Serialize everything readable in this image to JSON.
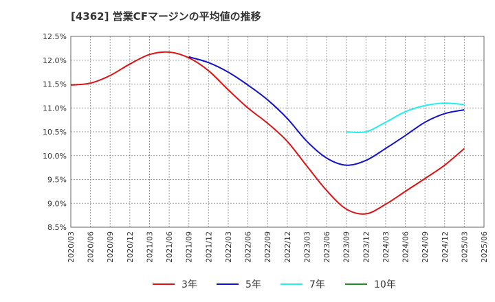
{
  "chart_data": {
    "type": "line",
    "title": "[4362]  営業CFマージンの平均値の推移",
    "xlabel": "",
    "ylabel": "",
    "ylim": [
      8.5,
      12.5
    ],
    "y_ticks": [
      "8.5%",
      "9.0%",
      "9.5%",
      "10.0%",
      "10.5%",
      "11.0%",
      "11.5%",
      "12.0%",
      "12.5%"
    ],
    "y_tick_values": [
      8.5,
      9.0,
      9.5,
      10.0,
      10.5,
      11.0,
      11.5,
      12.0,
      12.5
    ],
    "x_ticks": [
      "2020/03",
      "2020/06",
      "2020/09",
      "2020/12",
      "2021/03",
      "2021/06",
      "2021/09",
      "2021/12",
      "2022/03",
      "2022/06",
      "2022/09",
      "2022/12",
      "2023/03",
      "2023/06",
      "2023/09",
      "2023/12",
      "2024/03",
      "2024/06",
      "2024/09",
      "2024/12",
      "2025/03",
      "2025/06"
    ],
    "grid": true,
    "legend_position": "bottom",
    "series": [
      {
        "name": "3年",
        "color": "#dd1111",
        "x": [
          "2020/03",
          "2020/06",
          "2020/09",
          "2020/12",
          "2021/03",
          "2021/06",
          "2021/09",
          "2021/12",
          "2022/03",
          "2022/06",
          "2022/09",
          "2022/12",
          "2023/03",
          "2023/06",
          "2023/09",
          "2023/12",
          "2024/03",
          "2024/06",
          "2024/09",
          "2024/12",
          "2025/03"
        ],
        "values": [
          11.48,
          11.52,
          11.68,
          11.92,
          12.12,
          12.17,
          12.05,
          11.78,
          11.38,
          11.0,
          10.68,
          10.3,
          9.78,
          9.27,
          8.88,
          8.78,
          8.98,
          9.25,
          9.52,
          9.8,
          10.15
        ]
      },
      {
        "name": "5年",
        "color": "#1111cc",
        "x": [
          "2021/09",
          "2021/12",
          "2022/03",
          "2022/06",
          "2022/09",
          "2022/12",
          "2023/03",
          "2023/06",
          "2023/09",
          "2023/12",
          "2024/03",
          "2024/06",
          "2024/09",
          "2024/12",
          "2025/03"
        ],
        "values": [
          12.07,
          11.95,
          11.75,
          11.48,
          11.17,
          10.78,
          10.3,
          9.95,
          9.8,
          9.9,
          10.15,
          10.42,
          10.7,
          10.88,
          10.96
        ]
      },
      {
        "name": "7年",
        "color": "#22eeee",
        "x": [
          "2023/09",
          "2023/12",
          "2024/03",
          "2024/06",
          "2024/09",
          "2024/12",
          "2025/03"
        ],
        "values": [
          10.5,
          10.5,
          10.7,
          10.92,
          11.05,
          11.1,
          11.07
        ]
      },
      {
        "name": "10年",
        "color": "#228b22",
        "x": [],
        "values": []
      }
    ]
  }
}
